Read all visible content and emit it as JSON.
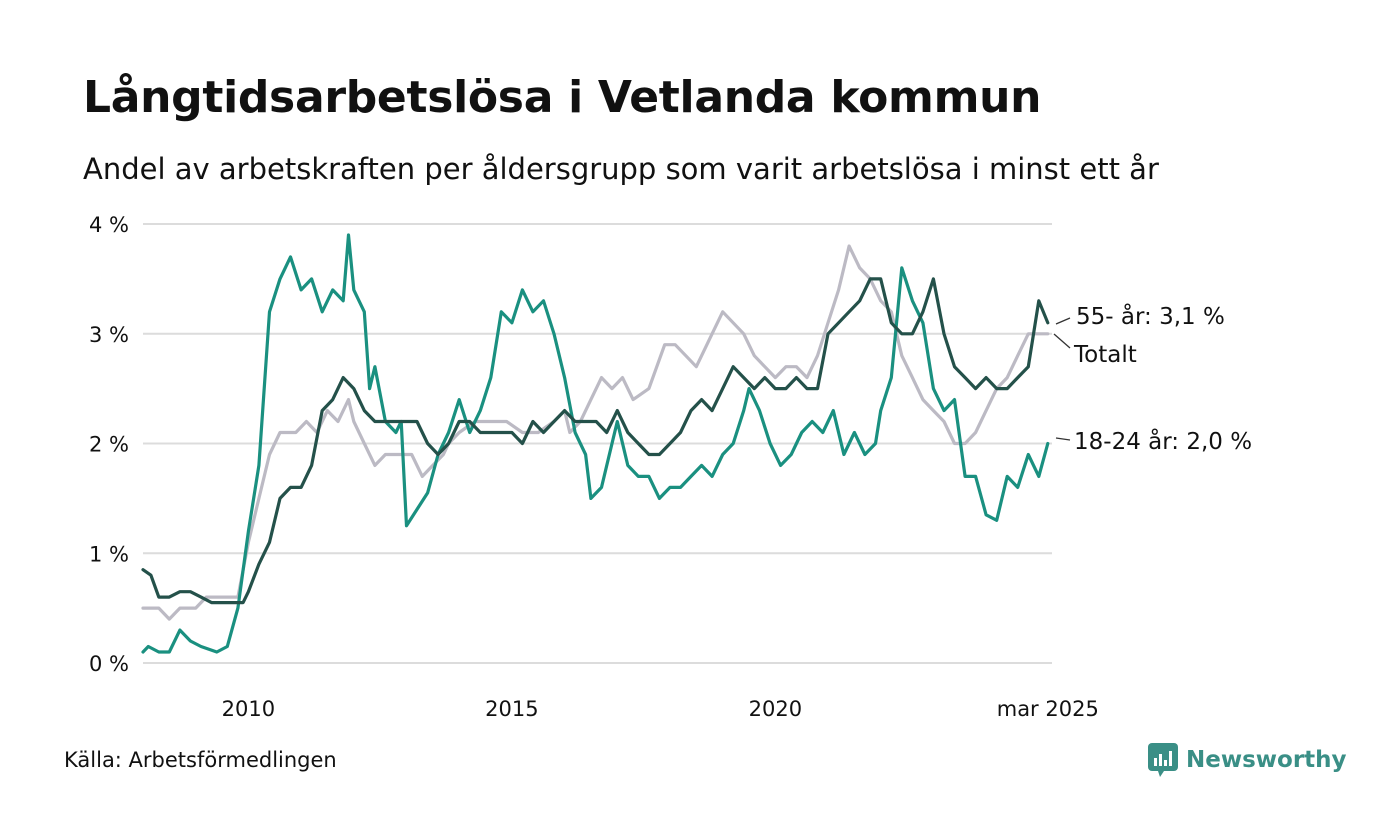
{
  "header": {
    "title": "Långtidsarbetslösa i Vetlanda kommun",
    "subtitle": "Andel av arbetskraften per åldersgrupp som varit arbetslösa i minst ett år"
  },
  "footer": {
    "source": "Källa: Arbetsförmedlingen",
    "brand": "Newsworthy",
    "brand_color": "#3a8f86"
  },
  "chart_data": {
    "type": "line",
    "title": "Långtidsarbetslösa i Vetlanda kommun",
    "subtitle": "Andel av arbetskraften per åldersgrupp som varit arbetslösa i minst ett år",
    "xlim": [
      2008.0,
      2025.25
    ],
    "ylim": [
      0,
      4
    ],
    "x_ticks": [
      {
        "value": 2010,
        "label": "2010"
      },
      {
        "value": 2015,
        "label": "2015"
      },
      {
        "value": 2020,
        "label": "2020"
      },
      {
        "value": 2025.17,
        "label": "mar 2025"
      }
    ],
    "y_ticks": [
      {
        "value": 0,
        "label": "0 %"
      },
      {
        "value": 1,
        "label": "1 %"
      },
      {
        "value": 2,
        "label": "2 %"
      },
      {
        "value": 3,
        "label": "3 %"
      },
      {
        "value": 4,
        "label": "4 %"
      }
    ],
    "grid": true,
    "legend": "direct labels at line ends",
    "series": [
      {
        "name": "Totalt",
        "end_label": "Totalt",
        "color": "#bcbac4",
        "points": [
          [
            2008.0,
            0.5
          ],
          [
            2008.3,
            0.5
          ],
          [
            2008.5,
            0.4
          ],
          [
            2008.7,
            0.5
          ],
          [
            2009.0,
            0.5
          ],
          [
            2009.2,
            0.6
          ],
          [
            2009.5,
            0.6
          ],
          [
            2009.8,
            0.6
          ],
          [
            2010.0,
            1.1
          ],
          [
            2010.2,
            1.5
          ],
          [
            2010.4,
            1.9
          ],
          [
            2010.6,
            2.1
          ],
          [
            2010.9,
            2.1
          ],
          [
            2011.1,
            2.2
          ],
          [
            2011.3,
            2.1
          ],
          [
            2011.5,
            2.3
          ],
          [
            2011.7,
            2.2
          ],
          [
            2011.9,
            2.4
          ],
          [
            2012.0,
            2.2
          ],
          [
            2012.2,
            2.0
          ],
          [
            2012.4,
            1.8
          ],
          [
            2012.6,
            1.9
          ],
          [
            2012.8,
            1.9
          ],
          [
            2013.1,
            1.9
          ],
          [
            2013.3,
            1.7
          ],
          [
            2013.5,
            1.8
          ],
          [
            2013.7,
            1.9
          ],
          [
            2013.8,
            2.0
          ],
          [
            2014.0,
            2.1
          ],
          [
            2014.3,
            2.2
          ],
          [
            2014.6,
            2.2
          ],
          [
            2014.9,
            2.2
          ],
          [
            2015.2,
            2.1
          ],
          [
            2015.5,
            2.1
          ],
          [
            2015.8,
            2.2
          ],
          [
            2016.0,
            2.3
          ],
          [
            2016.1,
            2.1
          ],
          [
            2016.3,
            2.2
          ],
          [
            2016.5,
            2.4
          ],
          [
            2016.7,
            2.6
          ],
          [
            2016.9,
            2.5
          ],
          [
            2017.1,
            2.6
          ],
          [
            2017.3,
            2.4
          ],
          [
            2017.6,
            2.5
          ],
          [
            2017.9,
            2.9
          ],
          [
            2018.1,
            2.9
          ],
          [
            2018.3,
            2.8
          ],
          [
            2018.5,
            2.7
          ],
          [
            2018.6,
            2.8
          ],
          [
            2018.8,
            3.0
          ],
          [
            2019.0,
            3.2
          ],
          [
            2019.2,
            3.1
          ],
          [
            2019.4,
            3.0
          ],
          [
            2019.6,
            2.8
          ],
          [
            2019.8,
            2.7
          ],
          [
            2020.0,
            2.6
          ],
          [
            2020.2,
            2.7
          ],
          [
            2020.4,
            2.7
          ],
          [
            2020.6,
            2.6
          ],
          [
            2020.8,
            2.8
          ],
          [
            2021.0,
            3.1
          ],
          [
            2021.2,
            3.4
          ],
          [
            2021.4,
            3.8
          ],
          [
            2021.6,
            3.6
          ],
          [
            2021.8,
            3.5
          ],
          [
            2022.0,
            3.3
          ],
          [
            2022.2,
            3.2
          ],
          [
            2022.4,
            2.8
          ],
          [
            2022.6,
            2.6
          ],
          [
            2022.8,
            2.4
          ],
          [
            2023.0,
            2.3
          ],
          [
            2023.2,
            2.2
          ],
          [
            2023.4,
            2.0
          ],
          [
            2023.6,
            2.0
          ],
          [
            2023.8,
            2.1
          ],
          [
            2024.0,
            2.3
          ],
          [
            2024.2,
            2.5
          ],
          [
            2024.4,
            2.6
          ],
          [
            2024.6,
            2.8
          ],
          [
            2024.8,
            3.0
          ],
          [
            2025.0,
            3.0
          ],
          [
            2025.17,
            3.0
          ]
        ]
      },
      {
        "name": "18-24 år",
        "end_label": "18-24 år: 2,0 %",
        "color": "#1a9080",
        "points": [
          [
            2008.0,
            0.1
          ],
          [
            2008.1,
            0.15
          ],
          [
            2008.3,
            0.1
          ],
          [
            2008.5,
            0.1
          ],
          [
            2008.7,
            0.3
          ],
          [
            2008.9,
            0.2
          ],
          [
            2009.1,
            0.15
          ],
          [
            2009.4,
            0.1
          ],
          [
            2009.6,
            0.15
          ],
          [
            2009.8,
            0.5
          ],
          [
            2010.0,
            1.2
          ],
          [
            2010.2,
            1.8
          ],
          [
            2010.4,
            3.2
          ],
          [
            2010.6,
            3.5
          ],
          [
            2010.8,
            3.7
          ],
          [
            2011.0,
            3.4
          ],
          [
            2011.2,
            3.5
          ],
          [
            2011.4,
            3.2
          ],
          [
            2011.6,
            3.4
          ],
          [
            2011.8,
            3.3
          ],
          [
            2011.9,
            3.9
          ],
          [
            2012.0,
            3.4
          ],
          [
            2012.2,
            3.2
          ],
          [
            2012.3,
            2.5
          ],
          [
            2012.4,
            2.7
          ],
          [
            2012.6,
            2.2
          ],
          [
            2012.8,
            2.1
          ],
          [
            2012.9,
            2.2
          ],
          [
            2013.0,
            1.25
          ],
          [
            2013.2,
            1.4
          ],
          [
            2013.4,
            1.55
          ],
          [
            2013.6,
            1.9
          ],
          [
            2013.8,
            2.1
          ],
          [
            2014.0,
            2.4
          ],
          [
            2014.2,
            2.1
          ],
          [
            2014.4,
            2.3
          ],
          [
            2014.6,
            2.6
          ],
          [
            2014.8,
            3.2
          ],
          [
            2015.0,
            3.1
          ],
          [
            2015.2,
            3.4
          ],
          [
            2015.4,
            3.2
          ],
          [
            2015.6,
            3.3
          ],
          [
            2015.8,
            3.0
          ],
          [
            2016.0,
            2.6
          ],
          [
            2016.2,
            2.1
          ],
          [
            2016.4,
            1.9
          ],
          [
            2016.5,
            1.5
          ],
          [
            2016.7,
            1.6
          ],
          [
            2016.9,
            2.0
          ],
          [
            2017.0,
            2.2
          ],
          [
            2017.2,
            1.8
          ],
          [
            2017.4,
            1.7
          ],
          [
            2017.6,
            1.7
          ],
          [
            2017.8,
            1.5
          ],
          [
            2018.0,
            1.6
          ],
          [
            2018.2,
            1.6
          ],
          [
            2018.4,
            1.7
          ],
          [
            2018.6,
            1.8
          ],
          [
            2018.8,
            1.7
          ],
          [
            2019.0,
            1.9
          ],
          [
            2019.2,
            2.0
          ],
          [
            2019.4,
            2.3
          ],
          [
            2019.5,
            2.5
          ],
          [
            2019.7,
            2.3
          ],
          [
            2019.9,
            2.0
          ],
          [
            2020.1,
            1.8
          ],
          [
            2020.3,
            1.9
          ],
          [
            2020.5,
            2.1
          ],
          [
            2020.7,
            2.2
          ],
          [
            2020.9,
            2.1
          ],
          [
            2021.1,
            2.3
          ],
          [
            2021.3,
            1.9
          ],
          [
            2021.5,
            2.1
          ],
          [
            2021.7,
            1.9
          ],
          [
            2021.9,
            2.0
          ],
          [
            2022.0,
            2.3
          ],
          [
            2022.2,
            2.6
          ],
          [
            2022.4,
            3.6
          ],
          [
            2022.6,
            3.3
          ],
          [
            2022.8,
            3.1
          ],
          [
            2023.0,
            2.5
          ],
          [
            2023.2,
            2.3
          ],
          [
            2023.4,
            2.4
          ],
          [
            2023.6,
            1.7
          ],
          [
            2023.8,
            1.7
          ],
          [
            2024.0,
            1.35
          ],
          [
            2024.2,
            1.3
          ],
          [
            2024.4,
            1.7
          ],
          [
            2024.6,
            1.6
          ],
          [
            2024.8,
            1.9
          ],
          [
            2025.0,
            1.7
          ],
          [
            2025.17,
            2.0
          ]
        ]
      },
      {
        "name": "55- år",
        "end_label": "55- år: 3,1 %",
        "color": "#24514a",
        "points": [
          [
            2008.0,
            0.85
          ],
          [
            2008.15,
            0.8
          ],
          [
            2008.3,
            0.6
          ],
          [
            2008.5,
            0.6
          ],
          [
            2008.7,
            0.65
          ],
          [
            2008.9,
            0.65
          ],
          [
            2009.1,
            0.6
          ],
          [
            2009.3,
            0.55
          ],
          [
            2009.5,
            0.55
          ],
          [
            2009.7,
            0.55
          ],
          [
            2009.9,
            0.55
          ],
          [
            2010.0,
            0.65
          ],
          [
            2010.2,
            0.9
          ],
          [
            2010.4,
            1.1
          ],
          [
            2010.6,
            1.5
          ],
          [
            2010.8,
            1.6
          ],
          [
            2011.0,
            1.6
          ],
          [
            2011.2,
            1.8
          ],
          [
            2011.4,
            2.3
          ],
          [
            2011.6,
            2.4
          ],
          [
            2011.8,
            2.6
          ],
          [
            2012.0,
            2.5
          ],
          [
            2012.2,
            2.3
          ],
          [
            2012.4,
            2.2
          ],
          [
            2012.6,
            2.2
          ],
          [
            2012.8,
            2.2
          ],
          [
            2013.0,
            2.2
          ],
          [
            2013.2,
            2.2
          ],
          [
            2013.4,
            2.0
          ],
          [
            2013.6,
            1.9
          ],
          [
            2013.8,
            2.0
          ],
          [
            2014.0,
            2.2
          ],
          [
            2014.2,
            2.2
          ],
          [
            2014.4,
            2.1
          ],
          [
            2014.6,
            2.1
          ],
          [
            2014.8,
            2.1
          ],
          [
            2015.0,
            2.1
          ],
          [
            2015.2,
            2.0
          ],
          [
            2015.4,
            2.2
          ],
          [
            2015.6,
            2.1
          ],
          [
            2015.8,
            2.2
          ],
          [
            2016.0,
            2.3
          ],
          [
            2016.2,
            2.2
          ],
          [
            2016.4,
            2.2
          ],
          [
            2016.6,
            2.2
          ],
          [
            2016.8,
            2.1
          ],
          [
            2017.0,
            2.3
          ],
          [
            2017.2,
            2.1
          ],
          [
            2017.4,
            2.0
          ],
          [
            2017.6,
            1.9
          ],
          [
            2017.8,
            1.9
          ],
          [
            2018.0,
            2.0
          ],
          [
            2018.2,
            2.1
          ],
          [
            2018.4,
            2.3
          ],
          [
            2018.6,
            2.4
          ],
          [
            2018.8,
            2.3
          ],
          [
            2019.0,
            2.5
          ],
          [
            2019.2,
            2.7
          ],
          [
            2019.4,
            2.6
          ],
          [
            2019.6,
            2.5
          ],
          [
            2019.8,
            2.6
          ],
          [
            2020.0,
            2.5
          ],
          [
            2020.2,
            2.5
          ],
          [
            2020.4,
            2.6
          ],
          [
            2020.6,
            2.5
          ],
          [
            2020.8,
            2.5
          ],
          [
            2021.0,
            3.0
          ],
          [
            2021.2,
            3.1
          ],
          [
            2021.4,
            3.2
          ],
          [
            2021.6,
            3.3
          ],
          [
            2021.8,
            3.5
          ],
          [
            2022.0,
            3.5
          ],
          [
            2022.2,
            3.1
          ],
          [
            2022.4,
            3.0
          ],
          [
            2022.6,
            3.0
          ],
          [
            2022.8,
            3.2
          ],
          [
            2023.0,
            3.5
          ],
          [
            2023.2,
            3.0
          ],
          [
            2023.4,
            2.7
          ],
          [
            2023.6,
            2.6
          ],
          [
            2023.8,
            2.5
          ],
          [
            2024.0,
            2.6
          ],
          [
            2024.2,
            2.5
          ],
          [
            2024.4,
            2.5
          ],
          [
            2024.6,
            2.6
          ],
          [
            2024.8,
            2.7
          ],
          [
            2025.0,
            3.3
          ],
          [
            2025.17,
            3.1
          ]
        ]
      }
    ]
  }
}
